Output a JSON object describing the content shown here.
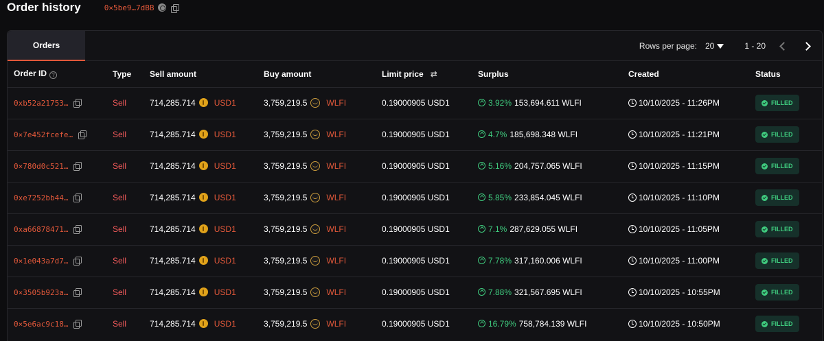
{
  "header": {
    "title": "Order history",
    "address": "0×5be9…7dBB"
  },
  "tabs": [
    {
      "label": "Orders",
      "active": true
    }
  ],
  "pagination": {
    "rows_per_page_label": "Rows per page:",
    "rows_per_page_value": "20",
    "range": "1 - 20"
  },
  "columns": {
    "order_id": "Order ID",
    "type": "Type",
    "sell_amount": "Sell amount",
    "buy_amount": "Buy amount",
    "limit_price": "Limit price",
    "surplus": "Surplus",
    "created": "Created",
    "status": "Status"
  },
  "rows": [
    {
      "id": "0xb52a21753…",
      "type": "Sell",
      "sell": "714,285.714",
      "sell_sym": "USD1",
      "buy": "3,759,219.5",
      "buy_sym": "WLFI",
      "limit": "0.19000905 USD1",
      "pct": "3.92%",
      "surplus": "153,694.611 WLFI",
      "created": "10/10/2025 - 11:26PM",
      "status": "FILLED"
    },
    {
      "id": "0×7e452fcefe…",
      "type": "Sell",
      "sell": "714,285.714",
      "sell_sym": "USD1",
      "buy": "3,759,219.5",
      "buy_sym": "WLFI",
      "limit": "0.19000905 USD1",
      "pct": "4.7%",
      "surplus": "185,698.348 WLFI",
      "created": "10/10/2025 - 11:21PM",
      "status": "FILLED"
    },
    {
      "id": "0×780d0c521…",
      "type": "Sell",
      "sell": "714,285.714",
      "sell_sym": "USD1",
      "buy": "3,759,219.5",
      "buy_sym": "WLFI",
      "limit": "0.19000905 USD1",
      "pct": "5.16%",
      "surplus": "204,757.065 WLFI",
      "created": "10/10/2025 - 11:15PM",
      "status": "FILLED"
    },
    {
      "id": "0xe7252bb44…",
      "type": "Sell",
      "sell": "714,285.714",
      "sell_sym": "USD1",
      "buy": "3,759,219.5",
      "buy_sym": "WLFI",
      "limit": "0.19000905 USD1",
      "pct": "5.85%",
      "surplus": "233,854.045 WLFI",
      "created": "10/10/2025 - 11:10PM",
      "status": "FILLED"
    },
    {
      "id": "0xa66878471…",
      "type": "Sell",
      "sell": "714,285.714",
      "sell_sym": "USD1",
      "buy": "3,759,219.5",
      "buy_sym": "WLFI",
      "limit": "0.19000905 USD1",
      "pct": "7.1%",
      "surplus": "287,629.055 WLFI",
      "created": "10/10/2025 - 11:05PM",
      "status": "FILLED"
    },
    {
      "id": "0×1e043a7d7…",
      "type": "Sell",
      "sell": "714,285.714",
      "sell_sym": "USD1",
      "buy": "3,759,219.5",
      "buy_sym": "WLFI",
      "limit": "0.19000905 USD1",
      "pct": "7.78%",
      "surplus": "317,160.006 WLFI",
      "created": "10/10/2025 - 11:00PM",
      "status": "FILLED"
    },
    {
      "id": "0×3505b923a…",
      "type": "Sell",
      "sell": "714,285.714",
      "sell_sym": "USD1",
      "buy": "3,759,219.5",
      "buy_sym": "WLFI",
      "limit": "0.19000905 USD1",
      "pct": "7.88%",
      "surplus": "321,567.695 WLFI",
      "created": "10/10/2025 - 10:55PM",
      "status": "FILLED"
    },
    {
      "id": "0×5e6ac9c18…",
      "type": "Sell",
      "sell": "714,285.714",
      "sell_sym": "USD1",
      "buy": "3,759,219.5",
      "buy_sym": "WLFI",
      "limit": "0.19000905 USD1",
      "pct": "16.79%",
      "surplus": "758,784.139 WLFI",
      "created": "10/10/2025 - 10:50PM",
      "status": "FILLED"
    }
  ],
  "colors": {
    "accent": "#e2583a",
    "positive": "#3fcb7e",
    "sell": "#f25a5a",
    "background": "#0d0d0f"
  },
  "icons": [
    "copy-icon",
    "address-identicon",
    "info-icon",
    "swap-icon",
    "chevron-left-icon",
    "chevron-right-icon",
    "caret-down-icon",
    "usd1-token-icon",
    "wlfi-token-icon",
    "surplus-up-icon",
    "clock-icon",
    "check-circle-icon"
  ]
}
